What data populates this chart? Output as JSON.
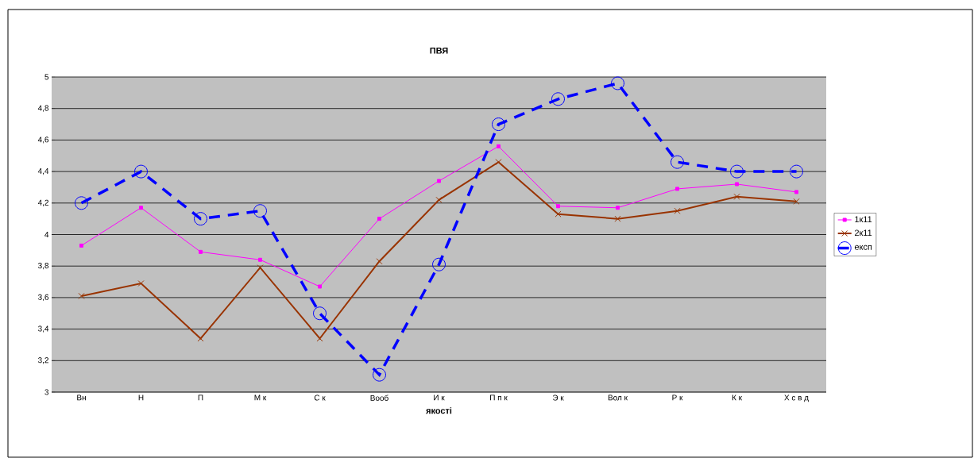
{
  "chart_data": {
    "type": "line",
    "title": "ПВЯ",
    "xlabel": "якості",
    "categories": [
      "Вн",
      "Н",
      "П",
      "М к",
      "С  к",
      "Вооб",
      "И к",
      "П п к",
      "Э к",
      "Вол к",
      "Р к",
      "К к",
      "Х с в д"
    ],
    "series": [
      {
        "name": "1к11",
        "color": "#ff00ff",
        "marker": "square",
        "line_style": "solid",
        "values": [
          3.93,
          4.17,
          3.89,
          3.84,
          3.67,
          4.1,
          4.34,
          4.56,
          4.18,
          4.17,
          4.29,
          4.32,
          4.27
        ]
      },
      {
        "name": "2к11",
        "color": "#993300",
        "marker": "cross",
        "line_style": "solid",
        "values": [
          3.61,
          3.69,
          3.34,
          3.79,
          3.34,
          3.83,
          4.22,
          4.46,
          4.13,
          4.1,
          4.15,
          4.24,
          4.21
        ]
      },
      {
        "name": "експ",
        "color": "#0000ff",
        "marker": "circle",
        "line_style": "dashed",
        "values": [
          4.2,
          4.4,
          4.1,
          4.15,
          3.5,
          3.11,
          3.81,
          4.7,
          4.86,
          4.96,
          4.46,
          4.4,
          4.4
        ]
      }
    ],
    "ylim": [
      3,
      5
    ],
    "yticks": [
      3,
      {
        "value": 3.2,
        "label": "3,2"
      },
      {
        "value": 3.4,
        "label": "3,4"
      },
      {
        "value": 3.6,
        "label": "3,6"
      },
      {
        "value": 3.8,
        "label": "3,8"
      },
      4,
      {
        "value": 4.2,
        "label": "4,2"
      },
      {
        "value": 4.4,
        "label": "4,4"
      },
      {
        "value": 4.6,
        "label": "4,6"
      },
      {
        "value": 4.8,
        "label": "4,8"
      },
      5
    ],
    "grid": "y",
    "legend": "right"
  }
}
